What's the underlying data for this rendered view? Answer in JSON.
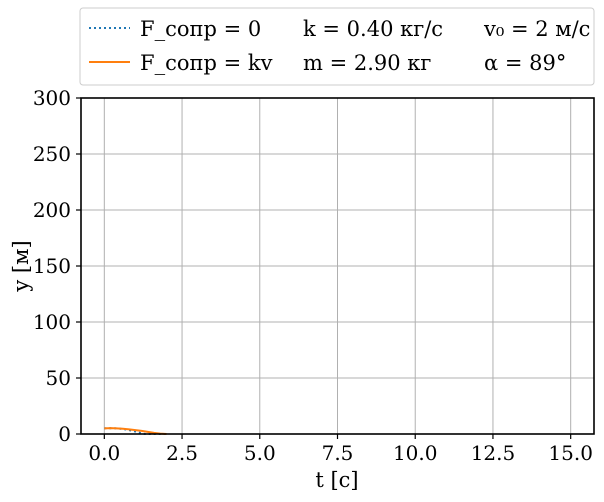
{
  "chart_data": {
    "type": "line",
    "xlabel": "t [с]",
    "ylabel": "y [м]",
    "xlim": [
      -0.75,
      15.75
    ],
    "ylim": [
      0,
      300
    ],
    "xticks": [
      "0.0",
      "2.5",
      "5.0",
      "7.5",
      "10.0",
      "12.5",
      "15.0"
    ],
    "xtick_values": [
      0,
      2.5,
      5,
      7.5,
      10,
      12.5,
      15
    ],
    "yticks": [
      "0",
      "50",
      "100",
      "150",
      "200",
      "250",
      "300"
    ],
    "ytick_values": [
      0,
      50,
      100,
      150,
      200,
      250,
      300
    ],
    "grid": true,
    "legend_position": "top, outside plot",
    "legend": {
      "series_labels": [
        "F_сопр = 0",
        "F_сопр = kv"
      ],
      "params": [
        "k = 0.40 кг/с",
        "m = 2.90 кг",
        "v₀ = 2 м/с",
        "α = 89°"
      ]
    },
    "series": [
      {
        "name": "F_сопр = 0",
        "style": "dotted",
        "color": "#1f77b4",
        "x": [
          0,
          0.1,
          0.2,
          0.3,
          0.4,
          0.5,
          0.6,
          0.7,
          0.8,
          0.9,
          1.0,
          1.1,
          1.2,
          1.3,
          1.4,
          1.5,
          1.6,
          1.7,
          1.8,
          1.9,
          2.0
        ],
        "y": [
          5.0,
          5.15,
          5.2,
          5.15,
          5.0,
          4.77,
          4.43,
          4.0,
          3.47,
          2.86,
          2.2,
          1.46,
          0.65,
          0.0,
          0.0,
          0.0,
          0.0,
          0.0,
          0.0,
          0.0,
          0.0
        ]
      },
      {
        "name": "F_сопр = kv",
        "style": "solid",
        "color": "#ff7f0e",
        "x": [
          0,
          0.2,
          0.4,
          0.6,
          0.8,
          1.0,
          1.2,
          1.4,
          1.6,
          1.8,
          2.0
        ],
        "y": [
          5.0,
          5.2,
          5.0,
          4.65,
          4.15,
          3.5,
          2.75,
          1.9,
          1.0,
          0.3,
          0.0
        ]
      }
    ]
  }
}
